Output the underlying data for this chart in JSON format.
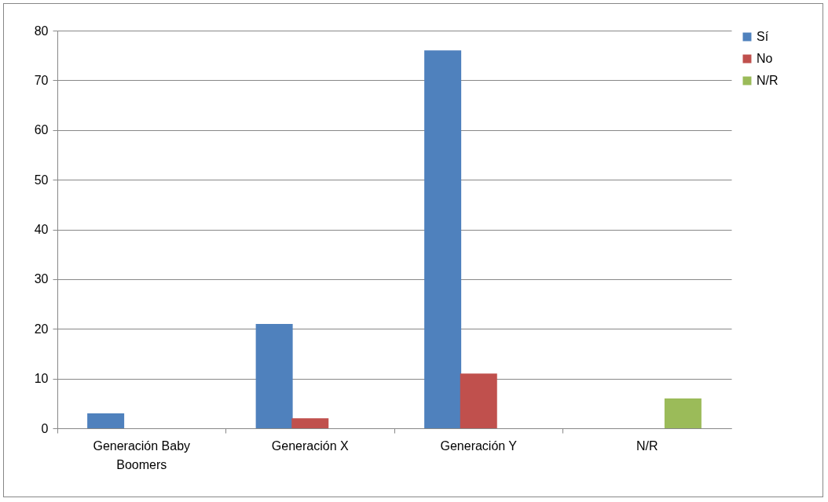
{
  "chart_data": {
    "type": "bar",
    "categories": [
      "Generación Baby Boomers",
      "Generación X",
      "Generación Y",
      "N/R"
    ],
    "series": [
      {
        "name": "Sí",
        "color": "#4f81bd",
        "values": [
          3,
          21,
          76,
          0
        ]
      },
      {
        "name": "No",
        "color": "#c0504d",
        "values": [
          0,
          2,
          11,
          0
        ]
      },
      {
        "name": "N/R",
        "color": "#9bbb59",
        "values": [
          0,
          0,
          0,
          6
        ]
      }
    ],
    "ylim": [
      0,
      80
    ],
    "yticks": [
      0,
      10,
      20,
      30,
      40,
      50,
      60,
      70,
      80
    ],
    "grid": "y",
    "legend": "right"
  }
}
